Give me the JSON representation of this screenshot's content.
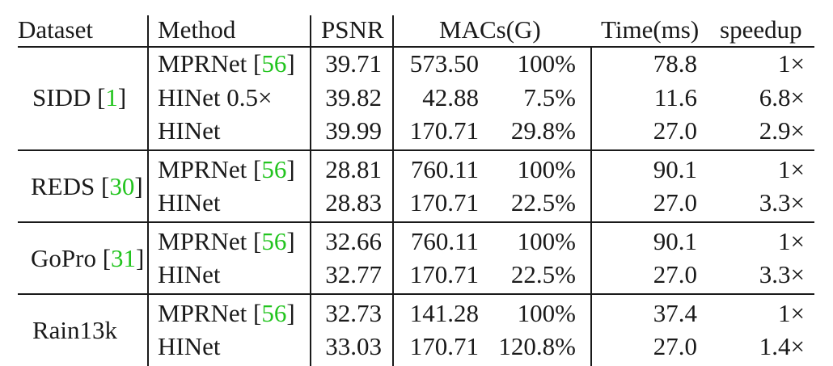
{
  "table": {
    "headers": {
      "dataset": "Dataset",
      "method": "Method",
      "psnr": "PSNR",
      "macs": "MACs(G)",
      "time": "Time(ms)",
      "speedup": "speedup"
    },
    "groups": [
      {
        "dataset": "SIDD",
        "dataset_ref": "1",
        "rows": [
          {
            "method": "MPRNet",
            "method_ref": "56",
            "psnr": "39.71",
            "macs": "573.50",
            "macs_pct": "100%",
            "time": "78.8",
            "speedup": "1×"
          },
          {
            "method": "HINet 0.5×",
            "method_ref": "",
            "psnr": "39.82",
            "macs": "42.88",
            "macs_pct": "7.5%",
            "time": "11.6",
            "speedup": "6.8×"
          },
          {
            "method": "HINet",
            "method_ref": "",
            "psnr": "39.99",
            "macs": "170.71",
            "macs_pct": "29.8%",
            "time": "27.0",
            "speedup": "2.9×"
          }
        ]
      },
      {
        "dataset": "REDS",
        "dataset_ref": "30",
        "rows": [
          {
            "method": "MPRNet",
            "method_ref": "56",
            "psnr": "28.81",
            "macs": "760.11",
            "macs_pct": "100%",
            "time": "90.1",
            "speedup": "1×"
          },
          {
            "method": "HINet",
            "method_ref": "",
            "psnr": "28.83",
            "macs": "170.71",
            "macs_pct": "22.5%",
            "time": "27.0",
            "speedup": "3.3×"
          }
        ]
      },
      {
        "dataset": "GoPro",
        "dataset_ref": "31",
        "rows": [
          {
            "method": "MPRNet",
            "method_ref": "56",
            "psnr": "32.66",
            "macs": "760.11",
            "macs_pct": "100%",
            "time": "90.1",
            "speedup": "1×"
          },
          {
            "method": "HINet",
            "method_ref": "",
            "psnr": "32.77",
            "macs": "170.71",
            "macs_pct": "22.5%",
            "time": "27.0",
            "speedup": "3.3×"
          }
        ]
      },
      {
        "dataset": "Rain13k",
        "dataset_ref": "",
        "rows": [
          {
            "method": "MPRNet",
            "method_ref": "56",
            "psnr": "32.73",
            "macs": "141.28",
            "macs_pct": "100%",
            "time": "37.4",
            "speedup": "1×"
          },
          {
            "method": "HINet",
            "method_ref": "",
            "psnr": "33.03",
            "macs": "170.71",
            "macs_pct": "120.8%",
            "time": "27.0",
            "speedup": "1.4×"
          }
        ]
      }
    ]
  }
}
